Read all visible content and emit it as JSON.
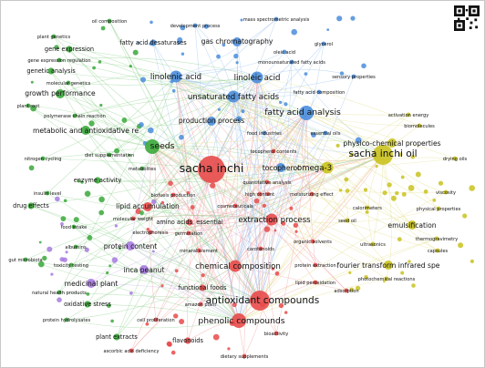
{
  "colors": {
    "red": "#e84a4a",
    "green": "#3aa83a",
    "blue": "#4a8ddc",
    "yellow": "#c9c21e",
    "purple": "#a77be0",
    "link_red": "#f29a9a",
    "link_green": "#8fd18f",
    "link_blue": "#9cc2ee",
    "link_yellow": "#e3df8a",
    "link_purple": "#cdb4f0"
  },
  "qr_code": "qr-code-icon",
  "nodes": [
    {
      "label": "sacha inchi",
      "cluster": "red",
      "weight": 10
    },
    {
      "label": "antioxidant compounds",
      "cluster": "red",
      "weight": 7
    },
    {
      "label": "phenolic compounds",
      "cluster": "red",
      "weight": 6
    },
    {
      "label": "chemical composition",
      "cluster": "red",
      "weight": 5
    },
    {
      "label": "extraction process",
      "cluster": "red",
      "weight": 5
    },
    {
      "label": "lipid accumulation",
      "cluster": "red",
      "weight": 4
    },
    {
      "label": "amino acids, essential",
      "cluster": "red",
      "weight": 3
    },
    {
      "label": "functional foods",
      "cluster": "red",
      "weight": 3
    },
    {
      "label": "flavonoids",
      "cluster": "red",
      "weight": 3
    },
    {
      "label": "biofuels production",
      "cluster": "red",
      "weight": 2
    },
    {
      "label": "molecular weight",
      "cluster": "red",
      "weight": 2
    },
    {
      "label": "electrophoresis",
      "cluster": "red",
      "weight": 2
    },
    {
      "label": "germination",
      "cluster": "red",
      "weight": 2
    },
    {
      "label": "mineral element",
      "cluster": "red",
      "weight": 2
    },
    {
      "label": "carotenoids",
      "cluster": "red",
      "weight": 2
    },
    {
      "label": "cosmeceuticals",
      "cluster": "red",
      "weight": 2
    },
    {
      "label": "organic solvents",
      "cluster": "red",
      "weight": 2
    },
    {
      "label": "protein extraction",
      "cluster": "red",
      "weight": 2
    },
    {
      "label": "lipid peroxidation",
      "cluster": "red",
      "weight": 2
    },
    {
      "label": "adsorption",
      "cluster": "red",
      "weight": 2
    },
    {
      "label": "amazon plant",
      "cluster": "red",
      "weight": 2
    },
    {
      "label": "cell proliferation",
      "cluster": "red",
      "weight": 2
    },
    {
      "label": "bioactivity",
      "cluster": "red",
      "weight": 2
    },
    {
      "label": "ascorbic acid deficiency",
      "cluster": "red",
      "weight": 2
    },
    {
      "label": "dietary supplements",
      "cluster": "red",
      "weight": 2
    },
    {
      "label": "high content",
      "cluster": "red",
      "weight": 2
    },
    {
      "label": "quantitative analysis",
      "cluster": "red",
      "weight": 2
    },
    {
      "label": "moisturizing effect",
      "cluster": "red",
      "weight": 2
    },
    {
      "label": "tocopherol contents",
      "cluster": "red",
      "weight": 2
    },
    {
      "label": "seeds",
      "cluster": "green",
      "weight": 6
    },
    {
      "label": "metabolic and antioxidative re",
      "cluster": "green",
      "weight": 4
    },
    {
      "label": "growth performance",
      "cluster": "green",
      "weight": 4
    },
    {
      "label": "genetic analysis",
      "cluster": "green",
      "weight": 3
    },
    {
      "label": "gene expression",
      "cluster": "green",
      "weight": 3
    },
    {
      "label": "gene expression regulation",
      "cluster": "green",
      "weight": 2
    },
    {
      "label": "plant genetics",
      "cluster": "green",
      "weight": 2
    },
    {
      "label": "oil composition",
      "cluster": "green",
      "weight": 2
    },
    {
      "label": "molecular genetics",
      "cluster": "green",
      "weight": 2
    },
    {
      "label": "plant root",
      "cluster": "green",
      "weight": 2
    },
    {
      "label": "polymerase chain reaction",
      "cluster": "green",
      "weight": 2
    },
    {
      "label": "diet supplementation",
      "cluster": "green",
      "weight": 2
    },
    {
      "label": "nitrogen cycling",
      "cluster": "green",
      "weight": 2
    },
    {
      "label": "enzyme activity",
      "cluster": "green",
      "weight": 3
    },
    {
      "label": "insulin level",
      "cluster": "green",
      "weight": 2
    },
    {
      "label": "drug effects",
      "cluster": "green",
      "weight": 3
    },
    {
      "label": "food intake",
      "cluster": "green",
      "weight": 2
    },
    {
      "label": "albumins",
      "cluster": "green",
      "weight": 2
    },
    {
      "label": "gut microbiota",
      "cluster": "green",
      "weight": 2
    },
    {
      "label": "toxicity testing",
      "cluster": "green",
      "weight": 2
    },
    {
      "label": "natural health products",
      "cluster": "green",
      "weight": 2
    },
    {
      "label": "oxidative stress",
      "cluster": "green",
      "weight": 3
    },
    {
      "label": "protein hydrolysates",
      "cluster": "green",
      "weight": 2
    },
    {
      "label": "plant extracts",
      "cluster": "green",
      "weight": 3
    },
    {
      "label": "metabolites",
      "cluster": "green",
      "weight": 2
    },
    {
      "label": "protein content",
      "cluster": "purple",
      "weight": 4
    },
    {
      "label": "inca peanut",
      "cluster": "purple",
      "weight": 4
    },
    {
      "label": "medicinal plant",
      "cluster": "purple",
      "weight": 4
    },
    {
      "label": "fatty acid analysis",
      "cluster": "blue",
      "weight": 6
    },
    {
      "label": "linolenic acid",
      "cluster": "blue",
      "weight": 5
    },
    {
      "label": "linoleic acid",
      "cluster": "blue",
      "weight": 5
    },
    {
      "label": "unsaturated fatty acids",
      "cluster": "blue",
      "weight": 5
    },
    {
      "label": "gas chromatography",
      "cluster": "blue",
      "weight": 4
    },
    {
      "label": "fatty acid desaturases",
      "cluster": "blue",
      "weight": 3
    },
    {
      "label": "mass spectrometric analysis",
      "cluster": "blue",
      "weight": 2
    },
    {
      "label": "development process",
      "cluster": "blue",
      "weight": 2
    },
    {
      "label": "oleic acid",
      "cluster": "blue",
      "weight": 2
    },
    {
      "label": "glycerol",
      "cluster": "blue",
      "weight": 2
    },
    {
      "label": "monounsaturated fatty acids",
      "cluster": "blue",
      "weight": 2
    },
    {
      "label": "sensory properties",
      "cluster": "blue",
      "weight": 2
    },
    {
      "label": "fatty acid composition",
      "cluster": "blue",
      "weight": 2
    },
    {
      "label": "production process",
      "cluster": "blue",
      "weight": 4
    },
    {
      "label": "food industries",
      "cluster": "blue",
      "weight": 2
    },
    {
      "label": "essential oils",
      "cluster": "blue",
      "weight": 2
    },
    {
      "label": "tocopherol",
      "cluster": "blue",
      "weight": 4
    },
    {
      "label": "omega-3",
      "cluster": "yellow",
      "weight": 5
    },
    {
      "label": "sacha inchi oil",
      "cluster": "yellow",
      "weight": 7
    },
    {
      "label": "physico-chemical properties",
      "cluster": "yellow",
      "weight": 4
    },
    {
      "label": "emulsification",
      "cluster": "yellow",
      "weight": 4
    },
    {
      "label": "fourier transform infrared spe",
      "cluster": "yellow",
      "weight": 4
    },
    {
      "label": "photochemical reactions",
      "cluster": "yellow",
      "weight": 2
    },
    {
      "label": "calorimeters",
      "cluster": "yellow",
      "weight": 2
    },
    {
      "label": "seed oil",
      "cluster": "yellow",
      "weight": 2
    },
    {
      "label": "ultrasonics",
      "cluster": "yellow",
      "weight": 2
    },
    {
      "label": "thermogravimetry",
      "cluster": "yellow",
      "weight": 2
    },
    {
      "label": "capsules",
      "cluster": "yellow",
      "weight": 2
    },
    {
      "label": "physical properties",
      "cluster": "yellow",
      "weight": 2
    },
    {
      "label": "viscosity",
      "cluster": "yellow",
      "weight": 2
    },
    {
      "label": "drying oils",
      "cluster": "yellow",
      "weight": 2
    },
    {
      "label": "biomolecules",
      "cluster": "yellow",
      "weight": 2
    },
    {
      "label": "activation energy",
      "cluster": "yellow",
      "weight": 2
    }
  ]
}
